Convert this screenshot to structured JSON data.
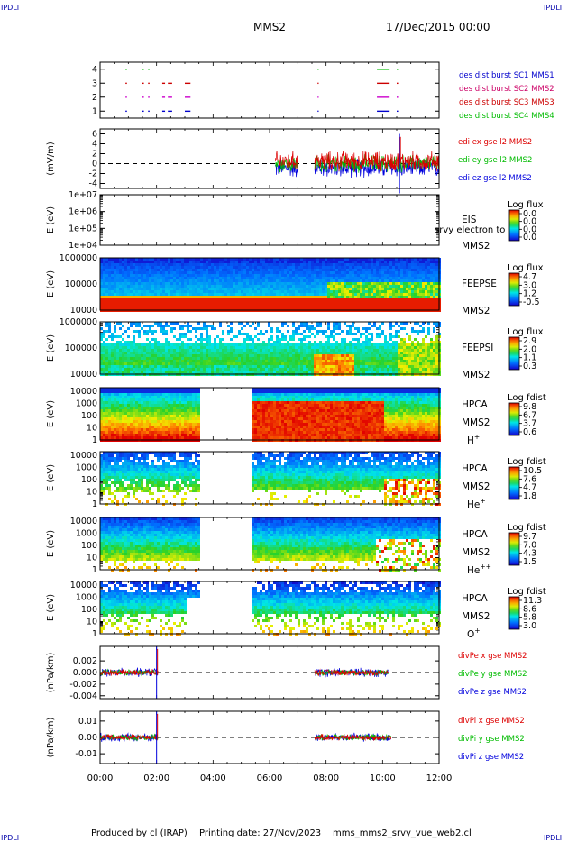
{
  "header": {
    "corner_left": "IPDLI",
    "corner_right": "IPDLI",
    "title": "MMS2",
    "date": "17/Dec/2015 00:00"
  },
  "footer": {
    "produced_by": "Produced by cl (IRAP)",
    "printing_date": "Printing date: 27/Nov/2023",
    "file_name": "mms_mms2_srvy_vue_web2.cl",
    "corner_left": "IPDLI",
    "corner_right": "IPDLI"
  },
  "colors": {
    "mms1": "#0000cc",
    "mms2": "#cc0066",
    "mms3": "#cc0000",
    "mms4": "#00bb00",
    "x_comp": "#dd0000",
    "y_comp": "#00bb00",
    "z_comp": "#0000dd"
  },
  "chart_data": [
    {
      "type": "scatter",
      "id": "burst",
      "ylabel": "",
      "ylim": [
        0.5,
        4.5
      ],
      "yticks": [
        {
          "v": 4,
          "label": "4"
        },
        {
          "v": 3,
          "label": "3"
        },
        {
          "v": 2,
          "label": "2"
        },
        {
          "v": 1,
          "label": "1"
        }
      ],
      "xlim": [
        0,
        12
      ],
      "legend": [
        "des dist burst SC1 MMS1",
        "des dist burst SC2 MMS2",
        "des dist burst SC3 MMS3",
        "des dist burst SC4 MMS4"
      ],
      "intervals": [
        {
          "level": 4,
          "color": "#00bb00",
          "t": [
            [
              0.9,
              0.95
            ],
            [
              1.5,
              1.55
            ],
            [
              1.7,
              1.75
            ],
            [
              7.7,
              7.72
            ],
            [
              9.8,
              10.25
            ],
            [
              10.5,
              10.55
            ]
          ]
        },
        {
          "level": 3,
          "color": "#cc0000",
          "t": [
            [
              0.9,
              0.95
            ],
            [
              1.5,
              1.55
            ],
            [
              1.7,
              1.75
            ],
            [
              2.2,
              2.3
            ],
            [
              2.4,
              2.55
            ],
            [
              3.0,
              3.2
            ],
            [
              7.7,
              7.72
            ],
            [
              9.8,
              10.25
            ],
            [
              10.5,
              10.55
            ]
          ]
        },
        {
          "level": 2,
          "color": "#cc00cc",
          "t": [
            [
              0.9,
              0.95
            ],
            [
              1.5,
              1.55
            ],
            [
              1.7,
              1.75
            ],
            [
              2.2,
              2.3
            ],
            [
              2.4,
              2.55
            ],
            [
              3.0,
              3.2
            ],
            [
              7.7,
              7.72
            ],
            [
              9.8,
              10.25
            ],
            [
              10.5,
              10.55
            ]
          ]
        },
        {
          "level": 1,
          "color": "#0000cc",
          "t": [
            [
              0.9,
              0.95
            ],
            [
              1.5,
              1.55
            ],
            [
              1.7,
              1.75
            ],
            [
              2.2,
              2.3
            ],
            [
              2.4,
              2.55
            ],
            [
              3.0,
              3.2
            ],
            [
              7.7,
              7.72
            ],
            [
              9.8,
              10.25
            ],
            [
              10.5,
              10.55
            ]
          ]
        }
      ]
    },
    {
      "type": "line",
      "id": "edi",
      "ylabel": "(mV/m)",
      "ylim": [
        -5,
        7
      ],
      "yticks": [
        {
          "v": 6,
          "label": "6"
        },
        {
          "v": 4,
          "label": "4"
        },
        {
          "v": 2,
          "label": "2"
        },
        {
          "v": 0,
          "label": "0"
        },
        {
          "v": -2,
          "label": "-2"
        },
        {
          "v": -4,
          "label": "-4"
        }
      ],
      "xlim": [
        0,
        12
      ],
      "zero_line": true,
      "legend": [
        "edi ex gse l2 MMS2",
        "edi ey gse l2 MMS2",
        "edi ez gse l2 MMS2"
      ],
      "segments": [
        [
          6.2,
          7.0
        ],
        [
          7.6,
          12.0
        ]
      ],
      "series_amplitude": {
        "x": 1.6,
        "y": 1.4,
        "z": 1.5
      },
      "spike": {
        "t": 10.6,
        "value": 6.0
      }
    },
    {
      "type": "heatmap",
      "id": "eis",
      "ylabel": "E (eV)",
      "ylog": true,
      "ylim": [
        10000,
        10000000
      ],
      "yticks": [
        {
          "v": 10000000,
          "label": "1e+07"
        },
        {
          "v": 1000000,
          "label": "1e+06"
        },
        {
          "v": 100000,
          "label": "1e+05"
        },
        {
          "v": 10000,
          "label": "1e+04"
        }
      ],
      "xlim": [
        0,
        12
      ],
      "labels": [
        "EIS",
        "MMS2"
      ],
      "overlay_text": "srvy electron to",
      "colorbar_title": "Log flux",
      "colorbar_ticks": [
        "0.0",
        "0.0",
        "0.0",
        "0.0"
      ],
      "empty": true
    },
    {
      "type": "heatmap",
      "id": "feepse",
      "ylabel": "E (eV)",
      "ylog": true,
      "ylim": [
        10000,
        1000000
      ],
      "yticks": [
        {
          "v": 1000000,
          "label": "1000000"
        },
        {
          "v": 100000,
          "label": "100000"
        },
        {
          "v": 10000,
          "label": "10000"
        }
      ],
      "xlim": [
        0,
        12
      ],
      "labels": [
        "FEEPSE",
        "MMS2"
      ],
      "colorbar_title": "Log flux",
      "colorbar_ticks": [
        "4.7",
        "3.0",
        "1.2",
        "-0.5"
      ],
      "gaps": []
    },
    {
      "type": "heatmap",
      "id": "feepsi",
      "ylabel": "E (eV)",
      "ylog": true,
      "ylim": [
        10000,
        1000000
      ],
      "yticks": [
        {
          "v": 1000000,
          "label": "1000000"
        },
        {
          "v": 100000,
          "label": "100000"
        },
        {
          "v": 10000,
          "label": "10000"
        }
      ],
      "xlim": [
        0,
        12
      ],
      "labels": [
        "FEEPSI",
        "MMS2"
      ],
      "colorbar_title": "Log flux",
      "colorbar_ticks": [
        "2.9",
        "2.0",
        "1.1",
        "0.3"
      ],
      "gaps": []
    },
    {
      "type": "heatmap",
      "id": "hpca_h",
      "ylabel": "E (eV)",
      "ylog": true,
      "ylim": [
        1,
        20000
      ],
      "yticks": [
        {
          "v": 10000,
          "label": "10000"
        },
        {
          "v": 1000,
          "label": "1000"
        },
        {
          "v": 100,
          "label": "100"
        },
        {
          "v": 10,
          "label": "10"
        },
        {
          "v": 1,
          "label": "1"
        }
      ],
      "xlim": [
        0,
        12
      ],
      "labels": [
        "HPCA",
        "MMS2",
        "H"
      ],
      "species_sup": "+",
      "colorbar_title": "Log fdist",
      "colorbar_ticks": [
        "9.8",
        "6.7",
        "3.7",
        "0.6"
      ],
      "gaps": [
        [
          3.45,
          5.3
        ]
      ]
    },
    {
      "type": "heatmap",
      "id": "hpca_he",
      "ylabel": "E (eV)",
      "ylog": true,
      "ylim": [
        1,
        20000
      ],
      "yticks": [
        {
          "v": 10000,
          "label": "10000"
        },
        {
          "v": 1000,
          "label": "1000"
        },
        {
          "v": 100,
          "label": "100"
        },
        {
          "v": 10,
          "label": "10"
        },
        {
          "v": 1,
          "label": "1"
        }
      ],
      "xlim": [
        0,
        12
      ],
      "labels": [
        "HPCA",
        "MMS2",
        "He"
      ],
      "species_sup": "+",
      "colorbar_title": "Log fdist",
      "colorbar_ticks": [
        "10.5",
        "7.6",
        "4.7",
        "1.8"
      ],
      "gaps": [
        [
          3.45,
          5.3
        ]
      ]
    },
    {
      "type": "heatmap",
      "id": "hpca_hepp",
      "ylabel": "E (eV)",
      "ylog": true,
      "ylim": [
        1,
        20000
      ],
      "yticks": [
        {
          "v": 10000,
          "label": "10000"
        },
        {
          "v": 1000,
          "label": "1000"
        },
        {
          "v": 100,
          "label": "100"
        },
        {
          "v": 10,
          "label": "10"
        },
        {
          "v": 1,
          "label": "1"
        }
      ],
      "xlim": [
        0,
        12
      ],
      "labels": [
        "HPCA",
        "MMS2",
        "He"
      ],
      "species_sup": "++",
      "colorbar_title": "Log fdist",
      "colorbar_ticks": [
        "9.7",
        "7.0",
        "4.3",
        "1.5"
      ],
      "gaps": [
        [
          3.45,
          5.3
        ]
      ]
    },
    {
      "type": "heatmap",
      "id": "hpca_o",
      "ylabel": "E (eV)",
      "ylog": true,
      "ylim": [
        1,
        20000
      ],
      "yticks": [
        {
          "v": 10000,
          "label": "10000"
        },
        {
          "v": 1000,
          "label": "1000"
        },
        {
          "v": 100,
          "label": "100"
        },
        {
          "v": 10,
          "label": "10"
        },
        {
          "v": 1,
          "label": "1"
        }
      ],
      "xlim": [
        0,
        12
      ],
      "labels": [
        "HPCA",
        "MMS2",
        "O"
      ],
      "species_sup": "+",
      "colorbar_title": "Log fdist",
      "colorbar_ticks": [
        "11.3",
        "8.6",
        "5.8",
        "3.0"
      ],
      "gaps": [
        [
          3.45,
          5.3
        ]
      ]
    },
    {
      "type": "line",
      "id": "divpe",
      "ylabel": "(nPa/km)",
      "ylim": [
        -0.0045,
        0.0045
      ],
      "yticks": [
        {
          "v": 0.002,
          "label": "0.002"
        },
        {
          "v": 0,
          "label": "0.000"
        },
        {
          "v": -0.002,
          "label": "-0.002"
        },
        {
          "v": -0.004,
          "label": "-0.004"
        }
      ],
      "xlim": [
        0,
        12
      ],
      "zero_line": true,
      "legend": [
        "divPe x gse MMS2",
        "divPe y gse MMS2",
        "divPe z gse MMS2"
      ],
      "segments": [
        [
          0.0,
          2.05
        ],
        [
          7.6,
          10.2
        ]
      ],
      "series_amplitude": {
        "x": 0.0004,
        "y": 0.0004,
        "z": 0.0006
      },
      "spike": {
        "t": 2.0,
        "value": 0.0045,
        "min": -0.0045
      }
    },
    {
      "type": "line",
      "id": "divpi",
      "ylabel": "(nPa/km)",
      "ylim": [
        -0.016,
        0.016
      ],
      "yticks": [
        {
          "v": 0.01,
          "label": "0.01"
        },
        {
          "v": 0,
          "label": "0.00"
        },
        {
          "v": -0.01,
          "label": "-0.01"
        }
      ],
      "xlim": [
        0,
        12
      ],
      "zero_line": true,
      "legend": [
        "divPi x gse MMS2",
        "divPi y gse MMS2",
        "divPi z gse MMS2"
      ],
      "segments": [
        [
          0.0,
          2.05
        ],
        [
          7.6,
          10.3
        ]
      ],
      "series_amplitude": {
        "x": 0.0015,
        "y": 0.0015,
        "z": 0.002
      },
      "spike": {
        "t": 2.0,
        "value": 0.016,
        "min": -0.016
      }
    }
  ],
  "time_axis": {
    "ticks": [
      {
        "v": 0,
        "label": "00:00"
      },
      {
        "v": 2,
        "label": "02:00"
      },
      {
        "v": 4,
        "label": "04:00"
      },
      {
        "v": 6,
        "label": "06:00"
      },
      {
        "v": 8,
        "label": "08:00"
      },
      {
        "v": 10,
        "label": "10:00"
      },
      {
        "v": 12,
        "label": "12:00"
      }
    ]
  }
}
